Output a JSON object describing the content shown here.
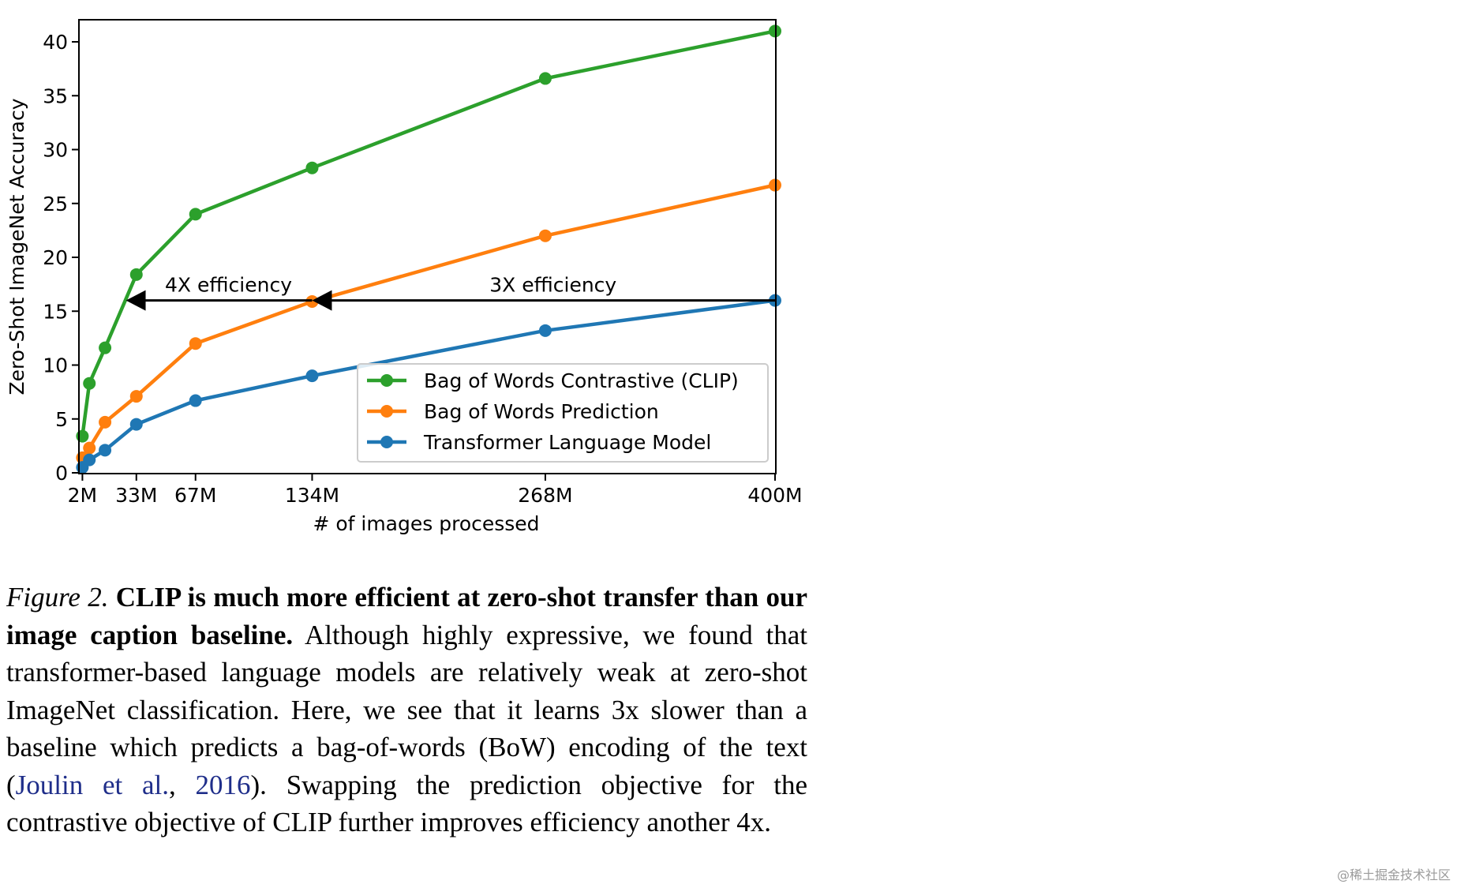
{
  "chart_data": {
    "type": "line",
    "ylabel": "Zero-Shot ImageNet Accuracy",
    "xlabel": "# of images processed",
    "xlim": [
      0,
      400
    ],
    "ylim": [
      0,
      41.5
    ],
    "xticks": [
      {
        "value": 2,
        "label": "2M"
      },
      {
        "value": 33,
        "label": "33M"
      },
      {
        "value": 67,
        "label": "67M"
      },
      {
        "value": 134,
        "label": "134M"
      },
      {
        "value": 268,
        "label": "268M"
      },
      {
        "value": 400,
        "label": "400M"
      }
    ],
    "yticks": [
      0,
      5,
      10,
      15,
      20,
      25,
      30,
      35,
      40
    ],
    "grid": false,
    "legend_position": "lower-right",
    "series": [
      {
        "name": "Bag of Words Contrastive (CLIP)",
        "color": "#2ca02c",
        "x": [
          2,
          6,
          15,
          33,
          67,
          134,
          268,
          400
        ],
        "y": [
          3.4,
          8.3,
          11.6,
          18.4,
          24.0,
          28.3,
          36.6,
          41.0
        ]
      },
      {
        "name": "Bag of Words Prediction",
        "color": "#ff7f0e",
        "x": [
          2,
          6,
          15,
          33,
          67,
          134,
          268,
          400
        ],
        "y": [
          1.4,
          2.3,
          4.7,
          7.1,
          12.0,
          15.9,
          22.0,
          26.7
        ]
      },
      {
        "name": "Transformer Language Model",
        "color": "#1f77b4",
        "x": [
          2,
          6,
          15,
          33,
          67,
          134,
          268,
          400
        ],
        "y": [
          0.5,
          1.2,
          2.1,
          4.5,
          6.7,
          9.0,
          13.2,
          16.0
        ]
      }
    ],
    "annotations": [
      {
        "text": "4X efficiency",
        "from": [
          134,
          16.0
        ],
        "to": [
          27,
          16.0
        ]
      },
      {
        "text": "3X efficiency",
        "from": [
          400,
          16.0
        ],
        "to": [
          134,
          16.0
        ]
      }
    ]
  },
  "caption": {
    "figure_label": "Figure 2.",
    "bold_text": "CLIP is much more efficient at zero-shot transfer than our image caption baseline.",
    "text_before_citation": "Although highly expressive, we found that transformer-based language models are relatively weak at zero-shot ImageNet classification. Here, we see that it learns 3x slower than a baseline which predicts a bag-of-words (BoW) encoding of the text (",
    "citation_authors": "Joulin et al.",
    "citation_separator": ", ",
    "citation_year": "2016",
    "text_after_citation": "). Swapping the prediction objective for the contrastive objective of CLIP further improves efficiency another 4x."
  },
  "watermark": "@稀土掘金技术社区"
}
